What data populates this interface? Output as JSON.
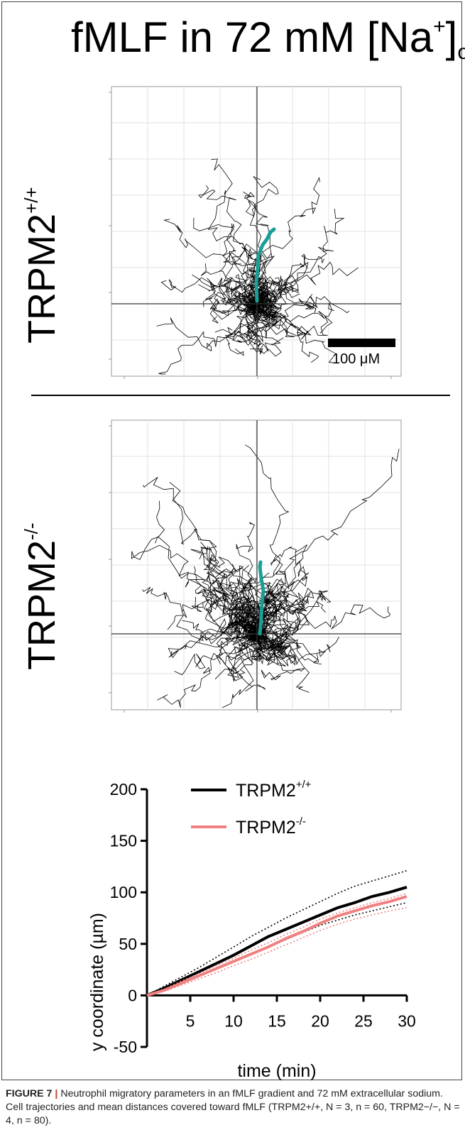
{
  "figure": {
    "title_main": "fMLF in 72 mM [Na",
    "title_sup": "+",
    "title_close": "]",
    "title_sub": "o",
    "row1_label_main": "TRPM2",
    "row1_label_sup": "+/+",
    "row2_label_main": "TRPM2",
    "row2_label_sup": "-/-",
    "scale_bar_label": "100 μM"
  },
  "caption": {
    "label": "FIGURE 7",
    "separator": "|",
    "text": "Neutrophil migratory parameters in an fMLF gradient and 72 mM extracellular sodium. Cell trajectories and mean distances covered toward fMLF (TRPM2+/+, N = 3, n = 60, TRPM2−/−, N = 4, n = 80)."
  },
  "colors": {
    "wt": "#000000",
    "ko": "#f08080",
    "mean_track": "#1a9e96"
  },
  "chart_data": {
    "type": "line",
    "xlabel": "time (min)",
    "ylabel": "y coordinate (µm)",
    "xlim": [
      0,
      30
    ],
    "ylim": [
      -50,
      200
    ],
    "xticks": [
      "5",
      "10",
      "15",
      "20",
      "25",
      "30"
    ],
    "yticks": [
      "-50",
      "0",
      "50",
      "100",
      "150",
      "200"
    ],
    "legend_position": "top",
    "series": [
      {
        "name": "TRPM2+/+",
        "legend_main": "TRPM2",
        "legend_sup": "+/+",
        "color": "#000000",
        "x": [
          0,
          2,
          4,
          6,
          8,
          10,
          12,
          14,
          16,
          18,
          20,
          22,
          24,
          26,
          28,
          30
        ],
        "y": [
          0,
          7,
          15,
          23,
          31,
          39,
          48,
          57,
          64,
          71,
          78,
          85,
          90,
          96,
          100,
          105
        ],
        "upper": [
          0,
          9,
          18,
          27,
          37,
          47,
          57,
          66,
          75,
          83,
          91,
          99,
          106,
          111,
          116,
          121
        ],
        "lower": [
          0,
          5,
          12,
          19,
          26,
          33,
          40,
          47,
          54,
          61,
          68,
          73,
          78,
          82,
          86,
          90
        ]
      },
      {
        "name": "TRPM2-/-",
        "legend_main": "TRPM2",
        "legend_sup": "-/-",
        "color": "#f08080",
        "x": [
          0,
          2,
          4,
          6,
          8,
          10,
          12,
          14,
          16,
          18,
          20,
          22,
          24,
          26,
          28,
          30
        ],
        "y": [
          0,
          5,
          12,
          19,
          26,
          33,
          40,
          47,
          55,
          62,
          70,
          77,
          82,
          87,
          91,
          96
        ],
        "upper": [
          0,
          6,
          14,
          21,
          29,
          36,
          44,
          51,
          59,
          66,
          74,
          80,
          85,
          90,
          94,
          99
        ],
        "lower": [
          0,
          4,
          10,
          16,
          22,
          29,
          35,
          42,
          49,
          56,
          63,
          69,
          74,
          78,
          82,
          85
        ]
      }
    ]
  }
}
